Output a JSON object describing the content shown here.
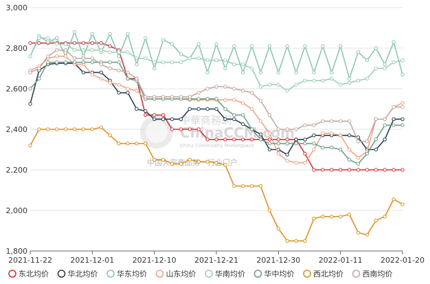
{
  "watermark": {
    "cn": "中華商務網",
    "en": "ChinaCCM.com",
    "sub": "China Commodity Marketplace",
    "slogan": "中国大宗商品第一行业门户"
  },
  "chart_data": {
    "type": "line",
    "title": "",
    "xlabel": "",
    "ylabel": "",
    "ylim": [
      1800,
      3000
    ],
    "yticks": [
      "3,000",
      "2,800",
      "2,600",
      "2,400",
      "2,200",
      "2,000",
      "1,800"
    ],
    "ytick_values": [
      3000,
      2800,
      2600,
      2400,
      2200,
      2000,
      1800
    ],
    "xticks": [
      "2021-11-22",
      "2021-12-01",
      "2021-12-10",
      "2021-12-21",
      "2021-12-30",
      "2022-01-11",
      "2022-01-20"
    ],
    "xtick_indices": [
      0,
      7,
      14,
      21,
      28,
      35,
      42
    ],
    "grid": true,
    "legend_position": "bottom",
    "series": [
      {
        "name": "东北均价",
        "color": "#d0343a",
        "values": [
          2825,
          2825,
          2825,
          2825,
          2825,
          2825,
          2825,
          2825,
          2825,
          2810,
          2790,
          2650,
          2650,
          2470,
          2470,
          2470,
          2400,
          2400,
          2400,
          2400,
          2350,
          2350,
          2350,
          2350,
          2350,
          2350,
          2350,
          2350,
          2350,
          2350,
          2350,
          2280,
          2200,
          2200,
          2200,
          2200,
          2200,
          2200,
          2200,
          2200,
          2200,
          2200,
          2200
        ]
      },
      {
        "name": "华北均价",
        "color": "#2b3e57",
        "values": [
          2525,
          2690,
          2720,
          2725,
          2725,
          2725,
          2680,
          2680,
          2680,
          2640,
          2580,
          2580,
          2500,
          2490,
          2450,
          2450,
          2450,
          2450,
          2500,
          2500,
          2500,
          2500,
          2450,
          2450,
          2425,
          2400,
          2375,
          2300,
          2300,
          2275,
          2350,
          2350,
          2370,
          2370,
          2370,
          2370,
          2370,
          2360,
          2300,
          2300,
          2350,
          2450,
          2450
        ]
      },
      {
        "name": "华东均价",
        "color": "#8dc5b4",
        "values": [
          2760,
          2860,
          2830,
          2850,
          2760,
          2880,
          2760,
          2870,
          2780,
          2870,
          2760,
          2870,
          2720,
          2850,
          2700,
          2840,
          2820,
          2770,
          2750,
          2820,
          2680,
          2820,
          2700,
          2810,
          2680,
          2810,
          2680,
          2810,
          2680,
          2810,
          2680,
          2810,
          2680,
          2810,
          2680,
          2810,
          2650,
          2780,
          2740,
          2800,
          2720,
          2830,
          2670
        ]
      },
      {
        "name": "山东均价",
        "color": "#f0a48a",
        "values": [
          2690,
          2710,
          2750,
          2760,
          2760,
          2720,
          2720,
          2670,
          2650,
          2630,
          2620,
          2600,
          2590,
          2550,
          2550,
          2550,
          2550,
          2550,
          2545,
          2545,
          2545,
          2545,
          2545,
          2545,
          2530,
          2500,
          2440,
          2380,
          2280,
          2245,
          2235,
          2235,
          2300,
          2380,
          2380,
          2370,
          2300,
          2260,
          2290,
          2450,
          2450,
          2510,
          2530
        ]
      },
      {
        "name": "华南均价",
        "color": "#9ecfb7",
        "values": [
          2760,
          2850,
          2850,
          2820,
          2820,
          2790,
          2790,
          2790,
          2790,
          2780,
          2780,
          2780,
          2750,
          2750,
          2730,
          2730,
          2730,
          2730,
          2750,
          2750,
          2740,
          2740,
          2740,
          2720,
          2720,
          2700,
          2610,
          2620,
          2620,
          2590,
          2620,
          2640,
          2640,
          2640,
          2650,
          2620,
          2630,
          2640,
          2650,
          2700,
          2700,
          2730,
          2740
        ]
      },
      {
        "name": "华中均价",
        "color": "#6f9e83",
        "values": [
          2600,
          2650,
          2730,
          2730,
          2730,
          2730,
          2730,
          2730,
          2730,
          2730,
          2730,
          2650,
          2640,
          2550,
          2550,
          2550,
          2550,
          2550,
          2550,
          2550,
          2550,
          2550,
          2500,
          2470,
          2470,
          2400,
          2350,
          2330,
          2330,
          2330,
          2330,
          2330,
          2330,
          2310,
          2310,
          2300,
          2250,
          2230,
          2280,
          2350,
          2420,
          2420,
          2420
        ]
      },
      {
        "name": "西北均价",
        "color": "#d89224",
        "values": [
          2320,
          2400,
          2400,
          2400,
          2400,
          2400,
          2400,
          2400,
          2410,
          2370,
          2330,
          2330,
          2330,
          2330,
          2250,
          2250,
          2230,
          2230,
          2250,
          2240,
          2240,
          2235,
          2225,
          2120,
          2120,
          2120,
          2120,
          2000,
          1910,
          1850,
          1850,
          1850,
          1960,
          1970,
          1970,
          1970,
          1980,
          1890,
          1880,
          1950,
          1970,
          2055,
          2030
        ]
      },
      {
        "name": "西南均价",
        "color": "#c4a89f",
        "values": [
          2680,
          2700,
          2760,
          2790,
          2790,
          2750,
          2750,
          2750,
          2720,
          2700,
          2690,
          2680,
          2650,
          2560,
          2560,
          2560,
          2560,
          2560,
          2560,
          2580,
          2600,
          2610,
          2610,
          2600,
          2590,
          2580,
          2540,
          2470,
          2400,
          2400,
          2400,
          2420,
          2420,
          2440,
          2440,
          2440,
          2440,
          2340,
          2340,
          2450,
          2450,
          2510,
          2510
        ]
      }
    ]
  }
}
